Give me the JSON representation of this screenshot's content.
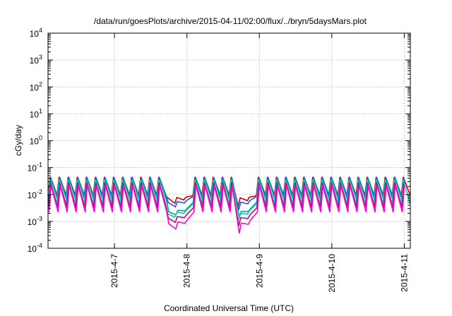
{
  "chart_data": {
    "type": "line",
    "title": "/data/run/goesPlots/archive/2015-04-11/02:00/flux/../bryn/5daysMars.plot",
    "xlabel": "Coordinated Universal Time (UTC)",
    "ylabel": "cGy/day",
    "yscale": "log",
    "ylim": [
      0.0001,
      10000
    ],
    "xlim": [
      "2015-04-06T02:00",
      "2015-04-11T02:00"
    ],
    "grid": true,
    "y_ticks": [
      {
        "value": 0.0001,
        "base": "10",
        "exp": "-4"
      },
      {
        "value": 0.001,
        "base": "10",
        "exp": "-3"
      },
      {
        "value": 0.01,
        "base": "10",
        "exp": "-2"
      },
      {
        "value": 0.1,
        "base": "10",
        "exp": "-1"
      },
      {
        "value": 1,
        "base": "10",
        "exp": "0"
      },
      {
        "value": 10,
        "base": "10",
        "exp": "1"
      },
      {
        "value": 100,
        "base": "10",
        "exp": "2"
      },
      {
        "value": 1000,
        "base": "10",
        "exp": "3"
      },
      {
        "value": 10000,
        "base": "10",
        "exp": "4"
      }
    ],
    "x_ticks": [
      {
        "value": "2015-04-07",
        "label": "2015-4-7"
      },
      {
        "value": "2015-04-08",
        "label": "2015-4-8"
      },
      {
        "value": "2015-04-09",
        "label": "2015-4-9"
      },
      {
        "value": "2015-04-10",
        "label": "2015-4-10"
      },
      {
        "value": "2015-04-11",
        "label": "2015-4-11"
      }
    ],
    "cycle_hours": 3,
    "events": [
      {
        "start": "2015-04-07T17:30",
        "end": "2015-04-08T01:30"
      },
      {
        "start": "2015-04-08T17:00",
        "end": "2015-04-08T22:00"
      }
    ],
    "series": [
      {
        "color": "#cc0000",
        "peak": 0.045,
        "trough": 0.009,
        "event_min": 0.0075,
        "event_depth": 0.0034
      },
      {
        "color": "#2255ee",
        "peak": 0.045,
        "trough": 0.0085,
        "event_min": 0.005,
        "event_depth": 0.0024
      },
      {
        "color": "#00aa77",
        "peak": 0.038,
        "trough": 0.0055,
        "event_min": 0.0022,
        "event_depth": 0.0012
      },
      {
        "color": "#00cccc",
        "peak": 0.035,
        "trough": 0.0045,
        "event_min": 0.0019,
        "event_depth": 0.001
      },
      {
        "color": "#aa1166",
        "peak": 0.028,
        "trough": 0.0032,
        "event_min": 0.0013,
        "event_depth": 0.0006
      },
      {
        "color": "#ff00dd",
        "peak": 0.022,
        "trough": 0.0022,
        "event_min": 0.0008,
        "event_depth": 0.0003
      }
    ]
  }
}
